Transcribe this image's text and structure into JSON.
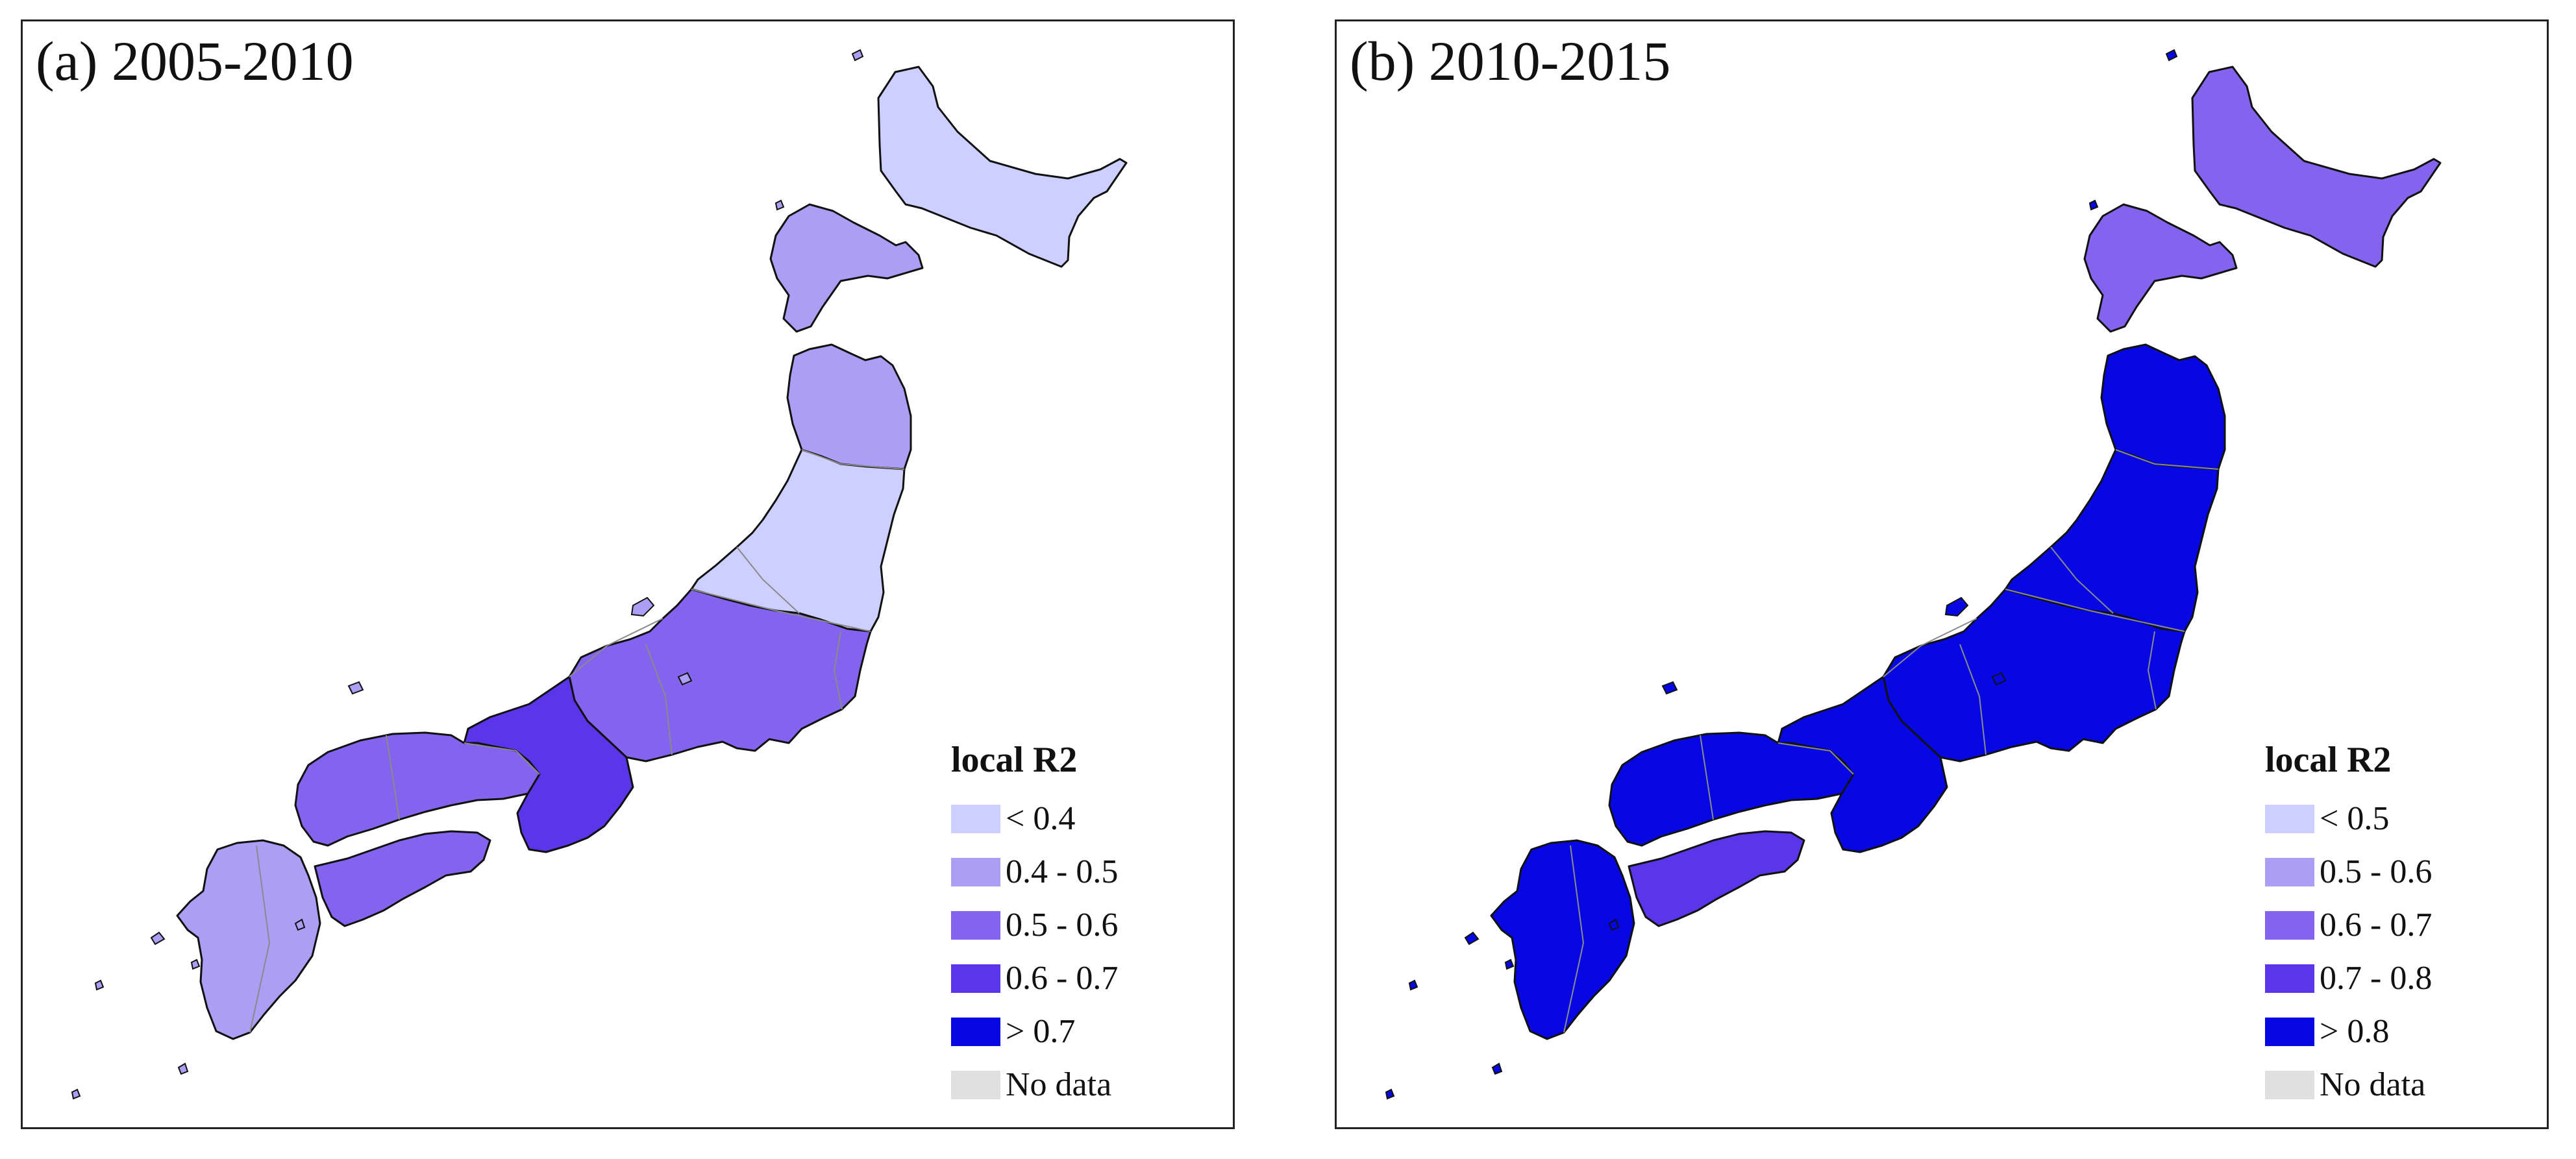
{
  "panels": [
    {
      "title": "(a) 2005-2010",
      "legend": {
        "title": "local R2",
        "items": [
          {
            "label": "< 0.4",
            "color": "#cccfff"
          },
          {
            "label": "0.4 - 0.5",
            "color": "#ac9df5"
          },
          {
            "label": "0.5 - 0.6",
            "color": "#8464ee"
          },
          {
            "label": "0.6 - 0.7",
            "color": "#5b35ea"
          },
          {
            "label": "> 0.7",
            "color": "#0707e3"
          },
          {
            "label": "No data",
            "color": "#e0e0e0"
          }
        ]
      },
      "regions": [
        {
          "name": "hokkaido",
          "class": "< 0.4"
        },
        {
          "name": "hokkaido-southwest",
          "class": "0.4 - 0.5"
        },
        {
          "name": "tohoku-north",
          "class": "0.4 - 0.5"
        },
        {
          "name": "tohoku-south",
          "class": "< 0.4"
        },
        {
          "name": "chubu-kanto",
          "class": "0.5 - 0.6"
        },
        {
          "name": "kinki",
          "class": "0.6 - 0.7"
        },
        {
          "name": "chugoku",
          "class": "0.5 - 0.6"
        },
        {
          "name": "shikoku",
          "class": "0.5 - 0.6"
        },
        {
          "name": "kyushu",
          "class": "0.4 - 0.5"
        }
      ]
    },
    {
      "title": "(b) 2010-2015",
      "legend": {
        "title": "local R2",
        "items": [
          {
            "label": "< 0.5",
            "color": "#cccfff"
          },
          {
            "label": "0.5 - 0.6",
            "color": "#ac9df5"
          },
          {
            "label": "0.6 - 0.7",
            "color": "#8464ee"
          },
          {
            "label": "0.7 - 0.8",
            "color": "#5b35ea"
          },
          {
            "label": "> 0.8",
            "color": "#0707e3"
          },
          {
            "label": "No data",
            "color": "#e0e0e0"
          }
        ]
      },
      "regions": [
        {
          "name": "hokkaido",
          "class": "0.6 - 0.7"
        },
        {
          "name": "hokkaido-southwest",
          "class": "0.6 - 0.7"
        },
        {
          "name": "tohoku-north",
          "class": "> 0.8"
        },
        {
          "name": "tohoku-south",
          "class": "> 0.8"
        },
        {
          "name": "chubu-kanto",
          "class": "> 0.8"
        },
        {
          "name": "kinki",
          "class": "> 0.8"
        },
        {
          "name": "chugoku",
          "class": "> 0.8"
        },
        {
          "name": "shikoku",
          "class": "0.7 - 0.8"
        },
        {
          "name": "kyushu",
          "class": "> 0.8"
        }
      ]
    }
  ]
}
